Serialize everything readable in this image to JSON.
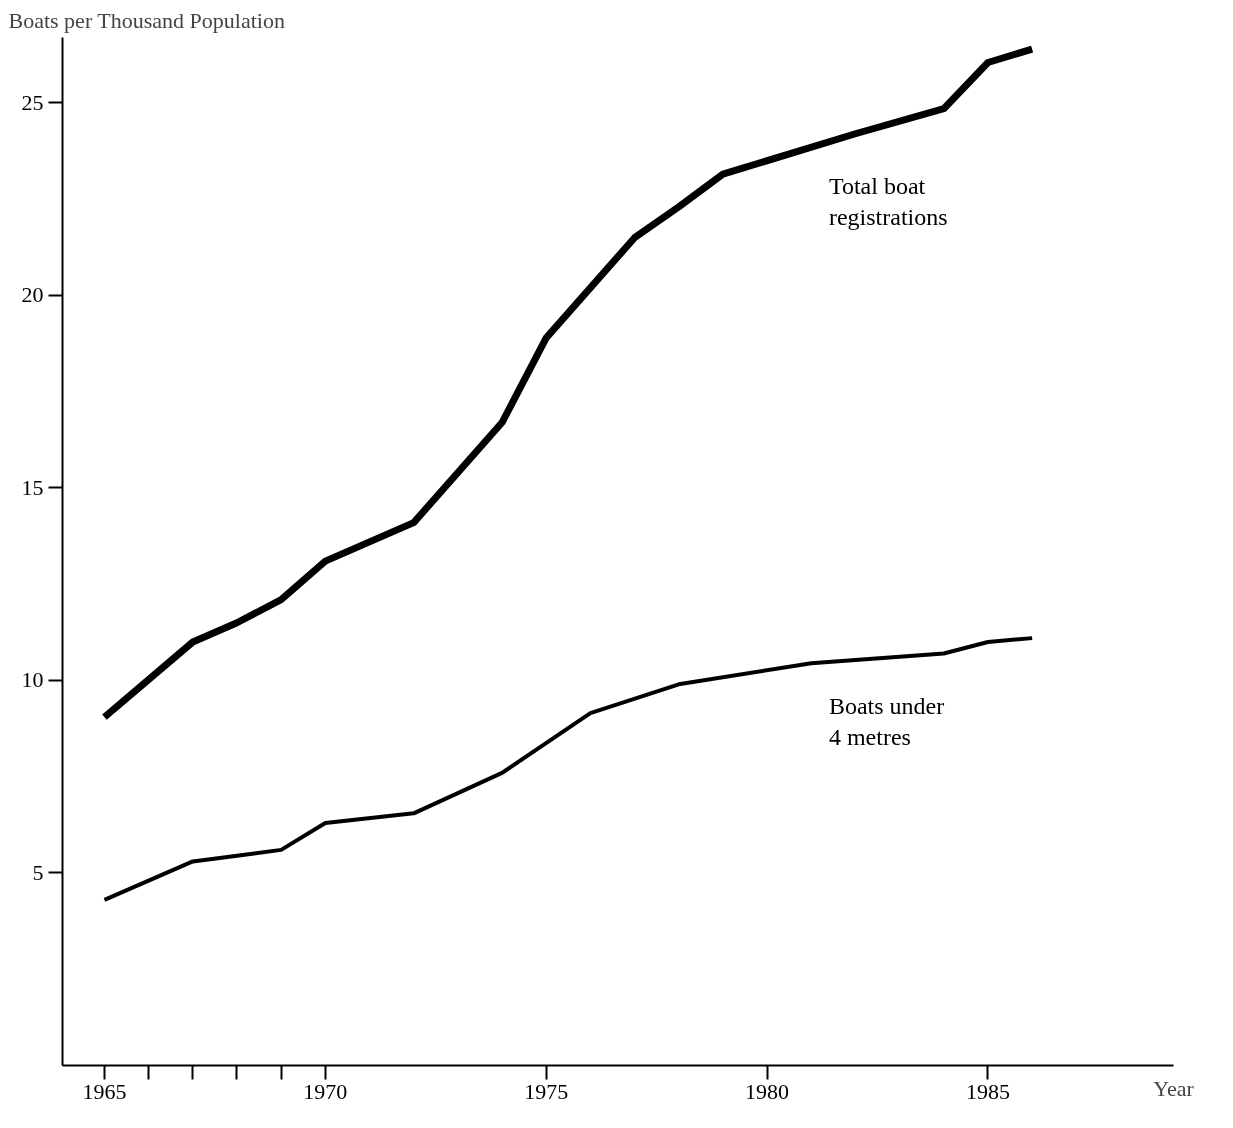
{
  "chart_data": {
    "type": "line",
    "ylabel": "Boats per Thousand Population",
    "xlabel": "Year",
    "xlim": [
      1964.05,
      1989.2
    ],
    "ylim": [
      0,
      26.7
    ],
    "xticks": [
      1965,
      {
        "value": 1966,
        "label": null
      },
      {
        "value": 1967,
        "label": null
      },
      {
        "value": 1968,
        "label": null
      },
      {
        "value": 1969,
        "label": null
      },
      1970,
      1975,
      1980,
      1985
    ],
    "yticks": [
      5,
      10,
      15,
      20,
      25
    ],
    "grid": false,
    "marker": "none",
    "line_style": "solid",
    "series": [
      {
        "name": "Total boat registrations",
        "color": "#000000",
        "x": [
          1965,
          1967,
          1968,
          1969,
          1970,
          1972,
          1974,
          1975,
          1977,
          1978,
          1979,
          1982,
          1984,
          1985,
          1986
        ],
        "values": [
          9.05,
          11.0,
          11.5,
          12.1,
          13.1,
          14.1,
          16.7,
          18.9,
          21.5,
          22.3,
          23.15,
          24.2,
          24.85,
          26.05,
          26.4
        ]
      },
      {
        "name": "Boats under 4 metres",
        "color": "#000000",
        "x": [
          1965,
          1967,
          1968,
          1969,
          1970,
          1972,
          1974,
          1976,
          1978,
          1981,
          1984,
          1985,
          1986
        ],
        "values": [
          4.3,
          5.3,
          5.45,
          5.6,
          6.3,
          6.55,
          7.6,
          9.15,
          9.9,
          10.45,
          10.7,
          11.0,
          11.1
        ]
      }
    ]
  }
}
